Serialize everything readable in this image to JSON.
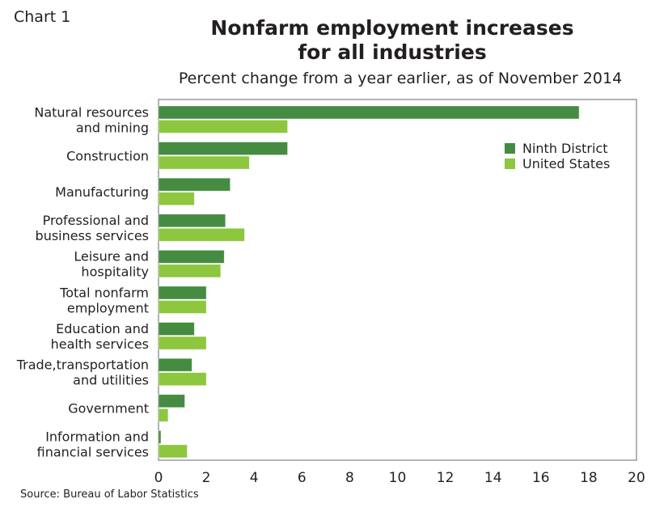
{
  "header": {
    "chart_number": "Chart 1",
    "title_line1": "Nonfarm employment increases",
    "title_line2": "for all industries",
    "subtitle": "Percent change from a year earlier, as of November 2014"
  },
  "footer": {
    "source": "Source: Bureau of Labor Statistics"
  },
  "colors": {
    "ninth_district": "#458b42",
    "united_states": "#8dc63f",
    "frame": "#9a9a9a"
  },
  "chart_data": {
    "type": "bar",
    "orientation": "horizontal",
    "title": "Nonfarm employment increases for all industries",
    "subtitle": "Percent change from a year earlier, as of November 2014",
    "xlabel": "",
    "ylabel": "",
    "xlim": [
      0,
      20
    ],
    "xticks": [
      0,
      2,
      4,
      6,
      8,
      10,
      12,
      14,
      16,
      18,
      20
    ],
    "grid": false,
    "legend_position": "top-right",
    "categories": [
      [
        "Natural resources",
        "and mining"
      ],
      [
        "Construction"
      ],
      [
        "Manufacturing"
      ],
      [
        "Professional and",
        "business services"
      ],
      [
        "Leisure and",
        "hospitality"
      ],
      [
        "Total nonfarm",
        "employment"
      ],
      [
        "Education and",
        "health services"
      ],
      [
        "Trade,transportation",
        "and utilities"
      ],
      [
        "Government"
      ],
      [
        "Information and",
        "financial services"
      ]
    ],
    "series": [
      {
        "name": "Ninth District",
        "values": [
          17.6,
          5.4,
          3.0,
          2.8,
          2.75,
          2.0,
          1.5,
          1.4,
          1.1,
          0.1
        ]
      },
      {
        "name": "United States",
        "values": [
          5.4,
          3.8,
          1.5,
          3.6,
          2.6,
          2.0,
          2.0,
          2.0,
          0.4,
          1.2
        ]
      }
    ],
    "source": "Source: Bureau of Labor Statistics"
  }
}
